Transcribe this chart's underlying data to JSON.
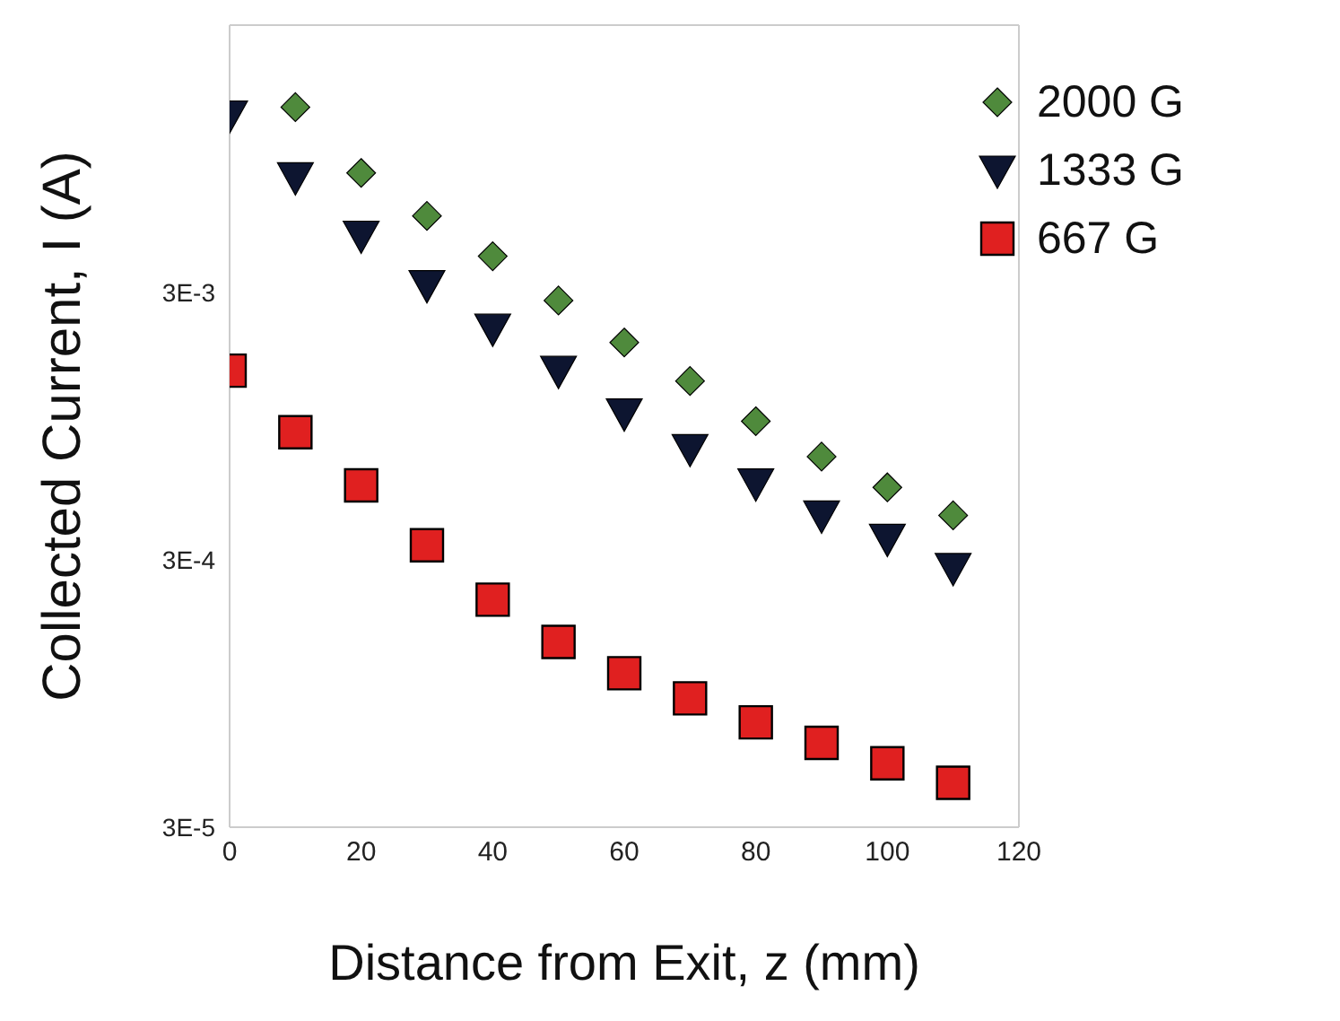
{
  "chart_data": {
    "type": "scatter",
    "xlabel": "Distance from Exit, z (mm)",
    "ylabel": "Collected Current, I (A)",
    "log": "y",
    "xlim": [
      0,
      120
    ],
    "xticks": [
      0,
      20,
      40,
      60,
      80,
      100,
      120
    ],
    "ylim": [
      3e-05,
      0.03
    ],
    "yticks": [
      {
        "value": 3e-05,
        "label": "3E-5"
      },
      {
        "value": 0.0003,
        "label": "3E-4"
      },
      {
        "value": 0.003,
        "label": "3E-3"
      }
    ],
    "grid": false,
    "legend": "top right",
    "series": [
      {
        "name": "2000 G",
        "color": "#4f8a3c",
        "marker": "diamond",
        "x": [
          10,
          20,
          30,
          40,
          50,
          60,
          70,
          80,
          90,
          100,
          110
        ],
        "values": [
          0.0148,
          0.0084,
          0.0058,
          0.0041,
          0.0028,
          0.00195,
          0.0014,
          0.00099,
          0.00073,
          0.00056,
          0.00044
        ]
      },
      {
        "name": "1333 G",
        "color": "#0d1530",
        "marker": "triangle-down",
        "x": [
          0,
          10,
          20,
          30,
          40,
          50,
          60,
          70,
          80,
          90,
          100,
          110
        ],
        "values": [
          0.0138,
          0.0081,
          0.0049,
          0.0032,
          0.0022,
          0.00153,
          0.00106,
          0.00078,
          0.00058,
          0.00044,
          0.00036,
          0.00028
        ]
      },
      {
        "name": "667 G",
        "color": "#e02020",
        "marker": "square",
        "x": [
          0,
          10,
          20,
          30,
          40,
          50,
          60,
          70,
          80,
          90,
          100,
          110
        ],
        "values": [
          0.00153,
          0.0009,
          0.00057,
          0.00034,
          0.000213,
          0.000148,
          0.000113,
          9.1e-05,
          7.4e-05,
          6.2e-05,
          5.2e-05,
          4.4e-05
        ]
      }
    ]
  }
}
